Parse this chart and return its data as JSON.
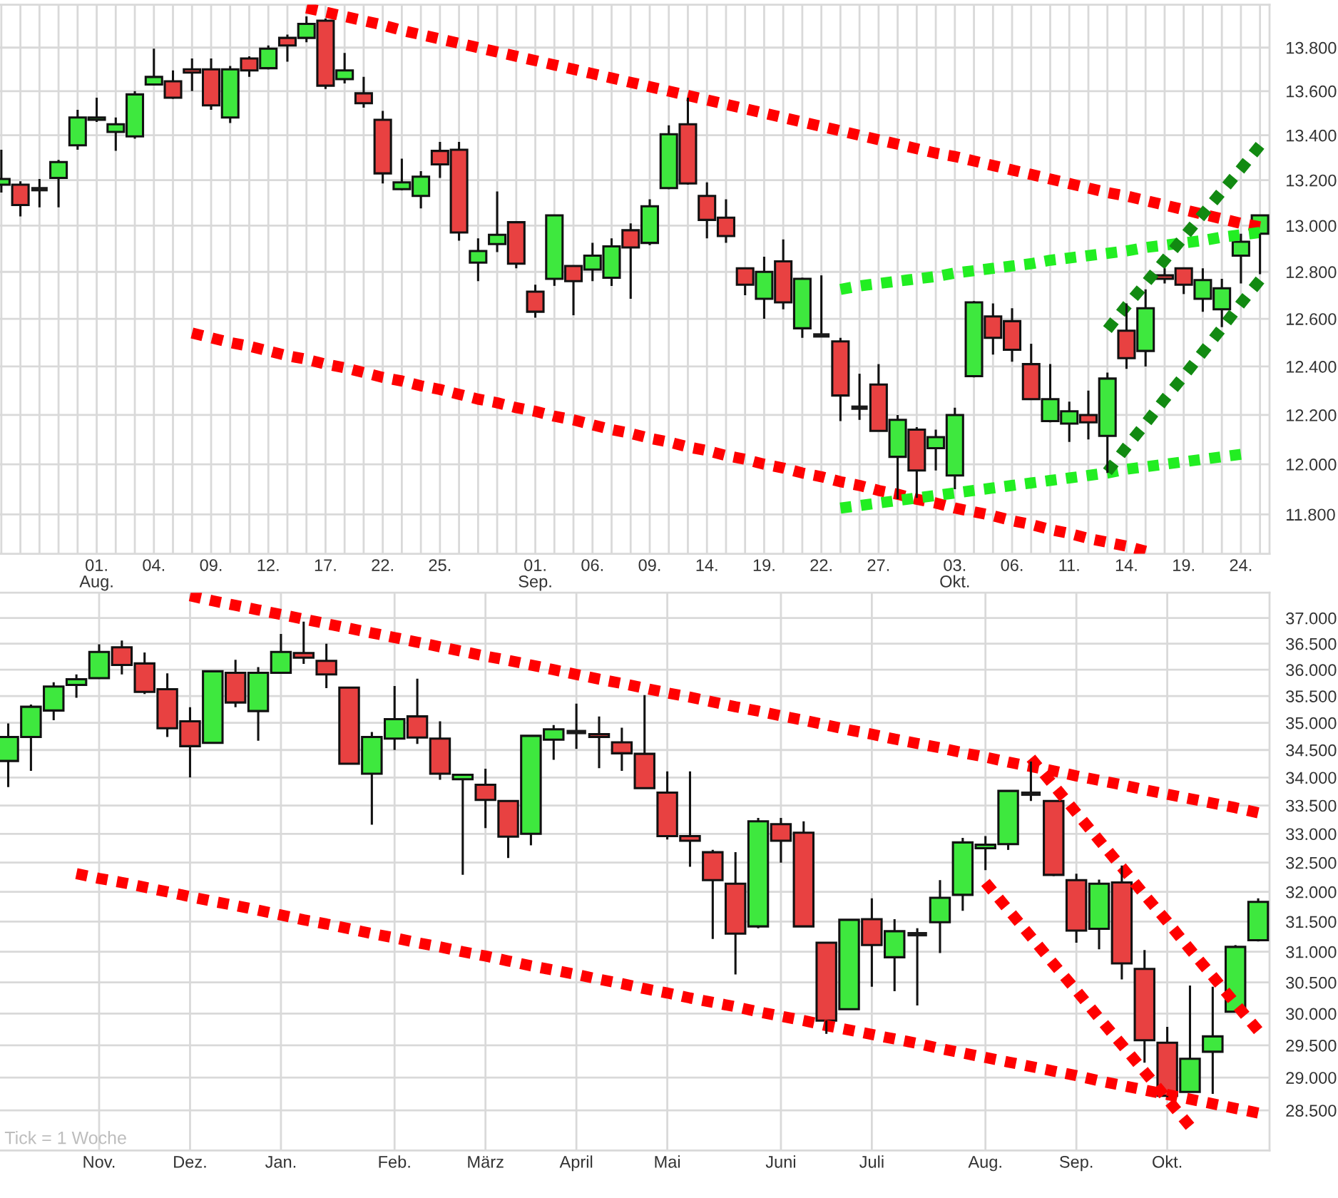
{
  "chart_data": [
    {
      "type": "candlestick",
      "categories": [
        null,
        null,
        null,
        null,
        null,
        "01.\nAug.",
        null,
        null,
        "04.",
        null,
        null,
        "09.",
        null,
        null,
        "12.",
        null,
        null,
        "17.",
        null,
        null,
        "22.",
        null,
        null,
        "25.",
        null,
        null,
        null,
        null,
        "01.\nSep.",
        null,
        null,
        "06.",
        null,
        null,
        "09.",
        null,
        null,
        "14.",
        null,
        null,
        "19.",
        null,
        null,
        "22.",
        null,
        null,
        "27.",
        null,
        null,
        null,
        "03.\nOkt.",
        null,
        null,
        "06.",
        null,
        null,
        "11.",
        null,
        null,
        "14.",
        null,
        null,
        "19.",
        null,
        null,
        "24.",
        null
      ],
      "ohlc": [
        [
          13180,
          13335,
          13145,
          13205
        ],
        [
          13180,
          13195,
          13040,
          13090
        ],
        [
          13160,
          13205,
          13080,
          13160
        ],
        [
          13210,
          13290,
          13080,
          13280
        ],
        [
          13355,
          13515,
          13335,
          13480
        ],
        [
          13470,
          13570,
          13460,
          13480
        ],
        [
          13415,
          13480,
          13330,
          13450
        ],
        [
          13395,
          13600,
          13385,
          13585
        ],
        [
          13630,
          13795,
          13625,
          13665
        ],
        [
          13645,
          13695,
          13565,
          13570
        ],
        [
          13700,
          13750,
          13600,
          13685
        ],
        [
          13700,
          13750,
          13515,
          13535
        ],
        [
          13480,
          13715,
          13455,
          13700
        ],
        [
          13750,
          13760,
          13665,
          13695
        ],
        [
          13705,
          13810,
          13700,
          13795
        ],
        [
          13845,
          13860,
          13735,
          13810
        ],
        [
          13845,
          13945,
          13825,
          13910
        ],
        [
          13925,
          13935,
          13610,
          13625
        ],
        [
          13655,
          13775,
          13635,
          13695
        ],
        [
          13590,
          13665,
          13525,
          13545
        ],
        [
          13470,
          13510,
          13185,
          13230
        ],
        [
          13160,
          13295,
          13155,
          13190
        ],
        [
          13130,
          13240,
          13075,
          13215
        ],
        [
          13330,
          13370,
          13210,
          13270
        ],
        [
          13335,
          13370,
          12935,
          12970
        ],
        [
          12840,
          12945,
          12760,
          12890
        ],
        [
          12920,
          13150,
          12885,
          12960
        ],
        [
          13015,
          13020,
          12815,
          12835
        ],
        [
          12715,
          12745,
          12605,
          12630
        ],
        [
          12770,
          13045,
          12740,
          13045
        ],
        [
          12825,
          12825,
          12615,
          12760
        ],
        [
          12810,
          12925,
          12760,
          12870
        ],
        [
          12775,
          12945,
          12740,
          12910
        ],
        [
          12980,
          13010,
          12685,
          12905
        ],
        [
          12925,
          13115,
          12915,
          13085
        ],
        [
          13165,
          13445,
          13160,
          13405
        ],
        [
          13450,
          13570,
          13180,
          13185
        ],
        [
          13130,
          13190,
          12945,
          13025
        ],
        [
          13035,
          13115,
          12925,
          12955
        ],
        [
          12815,
          12815,
          12700,
          12745
        ],
        [
          12685,
          12865,
          12600,
          12800
        ],
        [
          12845,
          12940,
          12640,
          12670
        ],
        [
          12560,
          12775,
          12520,
          12770
        ],
        [
          12530,
          12785,
          12525,
          12530
        ],
        [
          12505,
          12520,
          12175,
          12280
        ],
        [
          12230,
          12370,
          12180,
          12230
        ],
        [
          12325,
          12410,
          12135,
          12135
        ],
        [
          12030,
          12200,
          11860,
          12180
        ],
        [
          12140,
          12150,
          11865,
          11975
        ],
        [
          12065,
          12140,
          11975,
          12110
        ],
        [
          11955,
          12230,
          11900,
          12200
        ],
        [
          12360,
          12675,
          12355,
          12670
        ],
        [
          12610,
          12665,
          12450,
          12520
        ],
        [
          12590,
          12645,
          12420,
          12470
        ],
        [
          12410,
          12495,
          12265,
          12265
        ],
        [
          12175,
          12410,
          12170,
          12265
        ],
        [
          12165,
          12255,
          12090,
          12215
        ],
        [
          12200,
          12300,
          12100,
          12170
        ],
        [
          12115,
          12375,
          11965,
          12350
        ],
        [
          12550,
          12665,
          12390,
          12435
        ],
        [
          12465,
          12725,
          12400,
          12645
        ],
        [
          12785,
          12815,
          12750,
          12770
        ],
        [
          12815,
          12815,
          12705,
          12745
        ],
        [
          12685,
          12815,
          12630,
          12765
        ],
        [
          12640,
          12770,
          12565,
          12730
        ],
        [
          12870,
          12965,
          12750,
          12930
        ],
        [
          12965,
          13045,
          12790,
          13045
        ]
      ],
      "colors": [
        "#3ee83e",
        "#e84141",
        "#1a1a1a",
        "#3ee83e",
        "#3ee83e",
        "#3ee83e",
        "#3ee83e",
        "#3ee83e",
        "#3ee83e",
        "#e84141",
        "#e84141",
        "#e84141",
        "#3ee83e",
        "#e84141",
        "#3ee83e",
        "#e84141",
        "#3ee83e",
        "#e84141",
        "#3ee83e",
        "#e84141",
        "#e84141",
        "#3ee83e",
        "#3ee83e",
        "#e84141",
        "#e84141",
        "#3ee83e",
        "#3ee83e",
        "#e84141",
        "#e84141",
        "#3ee83e",
        "#e84141",
        "#3ee83e",
        "#3ee83e",
        "#e84141",
        "#3ee83e",
        "#3ee83e",
        "#e84141",
        "#e84141",
        "#e84141",
        "#e84141",
        "#3ee83e",
        "#e84141",
        "#3ee83e",
        "#1a1a1a",
        "#e84141",
        "#1a1a1a",
        "#e84141",
        "#3ee83e",
        "#e84141",
        "#3ee83e",
        "#3ee83e",
        "#3ee83e",
        "#e84141",
        "#e84141",
        "#e84141",
        "#3ee83e",
        "#3ee83e",
        "#e84141",
        "#3ee83e",
        "#e84141",
        "#3ee83e",
        "#e84141",
        "#e84141",
        "#3ee83e",
        "#3ee83e",
        "#3ee83e",
        "#3ee83e"
      ],
      "ylim": [
        11645,
        14000
      ],
      "yticks": [
        {
          "value": 11800,
          "label": "11.800"
        },
        {
          "value": 12000,
          "label": "12.000"
        },
        {
          "value": 12200,
          "label": "12.200"
        },
        {
          "value": 12400,
          "label": "12.400"
        },
        {
          "value": 12600,
          "label": "12.600"
        },
        {
          "value": 12800,
          "label": "12.800"
        },
        {
          "value": 13000,
          "label": "13.000"
        },
        {
          "value": 13200,
          "label": "13.200"
        },
        {
          "value": 13400,
          "label": "13.400"
        },
        {
          "value": 13600,
          "label": "13.600"
        },
        {
          "value": 13800,
          "label": "13.800"
        }
      ],
      "log": true,
      "grid": true,
      "series": [
        {
          "type": "line",
          "color": "#ff0000",
          "line_style": "dotted",
          "values": [
            null,
            null,
            null,
            null,
            null,
            null,
            null,
            null,
            null,
            null,
            null,
            null,
            null,
            null,
            null,
            null,
            13985,
            13965,
            13945,
            13925,
            13905,
            13880,
            13860,
            13840,
            13820,
            13800,
            13780,
            13760,
            13740,
            13720,
            13700,
            13680,
            13660,
            13640,
            13620,
            13600,
            13580,
            13560,
            13540,
            13520,
            13500,
            13480,
            13460,
            13440,
            13420,
            13400,
            13380,
            13360,
            13340,
            13320,
            13305,
            13285,
            13265,
            13245,
            13225,
            13205,
            13185,
            13165,
            13145,
            13130,
            13110,
            13090,
            13070,
            13050,
            13030,
            13010,
            12995
          ]
        },
        {
          "type": "line",
          "color": "#ff0000",
          "line_style": "dotted",
          "values": [
            null,
            null,
            null,
            null,
            null,
            null,
            null,
            null,
            null,
            null,
            12540,
            12520,
            12500,
            12485,
            12465,
            12445,
            12430,
            12410,
            12395,
            12375,
            12355,
            12340,
            12320,
            12305,
            12285,
            12265,
            12250,
            12230,
            12215,
            12195,
            12180,
            12160,
            12140,
            12125,
            12105,
            12090,
            12070,
            12055,
            12035,
            12020,
            12000,
            11985,
            11965,
            11950,
            11930,
            11915,
            11895,
            11880,
            11860,
            11845,
            11825,
            11810,
            11795,
            11775,
            11760,
            11740,
            11725,
            11705,
            11690,
            11675,
            11655,
            null,
            null,
            null,
            null,
            null,
            null
          ]
        },
        {
          "type": "line",
          "color": "#22ee22",
          "line_style": "dotted",
          "values": [
            null,
            null,
            null,
            null,
            null,
            null,
            null,
            null,
            null,
            null,
            null,
            null,
            null,
            null,
            null,
            null,
            null,
            null,
            null,
            null,
            null,
            null,
            null,
            null,
            null,
            null,
            null,
            null,
            null,
            null,
            null,
            null,
            null,
            null,
            null,
            null,
            null,
            null,
            null,
            null,
            null,
            null,
            null,
            null,
            12725,
            12740,
            12750,
            12760,
            12770,
            12780,
            12795,
            12805,
            12815,
            12825,
            12835,
            12850,
            12860,
            12870,
            12880,
            12890,
            12905,
            12915,
            12925,
            12935,
            12950,
            12960,
            12970
          ]
        },
        {
          "type": "line",
          "color": "#22ee22",
          "line_style": "dotted",
          "values": [
            null,
            null,
            null,
            null,
            null,
            null,
            null,
            null,
            null,
            null,
            null,
            null,
            null,
            null,
            null,
            null,
            null,
            null,
            null,
            null,
            null,
            null,
            null,
            null,
            null,
            null,
            null,
            null,
            null,
            null,
            null,
            null,
            null,
            null,
            null,
            null,
            null,
            null,
            null,
            null,
            null,
            null,
            null,
            null,
            11825,
            11835,
            11845,
            11855,
            11865,
            11875,
            11885,
            11895,
            11905,
            11915,
            11925,
            11935,
            11945,
            11955,
            11965,
            11980,
            11990,
            12000,
            12010,
            12020,
            12030,
            12040,
            null
          ]
        },
        {
          "type": "line",
          "color": "#128a12",
          "line_style": "dotted",
          "values": [
            null,
            null,
            null,
            null,
            null,
            null,
            null,
            null,
            null,
            null,
            null,
            null,
            null,
            null,
            null,
            null,
            null,
            null,
            null,
            null,
            null,
            null,
            null,
            null,
            null,
            null,
            null,
            null,
            null,
            null,
            null,
            null,
            null,
            null,
            null,
            null,
            null,
            null,
            null,
            null,
            null,
            null,
            null,
            null,
            null,
            null,
            null,
            null,
            null,
            null,
            null,
            null,
            null,
            null,
            null,
            null,
            null,
            null,
            12555,
            12655,
            12750,
            12850,
            12950,
            13050,
            13150,
            13250,
            13355
          ]
        },
        {
          "type": "line",
          "color": "#128a12",
          "line_style": "dotted",
          "values": [
            null,
            null,
            null,
            null,
            null,
            null,
            null,
            null,
            null,
            null,
            null,
            null,
            null,
            null,
            null,
            null,
            null,
            null,
            null,
            null,
            null,
            null,
            null,
            null,
            null,
            null,
            null,
            null,
            null,
            null,
            null,
            null,
            null,
            null,
            null,
            null,
            null,
            null,
            null,
            null,
            null,
            null,
            null,
            null,
            null,
            null,
            null,
            null,
            null,
            null,
            null,
            null,
            null,
            null,
            null,
            null,
            null,
            null,
            11970,
            12070,
            12165,
            12265,
            12360,
            12460,
            12560,
            12665,
            12765
          ]
        }
      ]
    },
    {
      "type": "candlestick",
      "categories": [
        null,
        null,
        null,
        null,
        "Nov.",
        null,
        null,
        null,
        "Dez.",
        null,
        null,
        null,
        "Jan.",
        null,
        null,
        null,
        null,
        "Feb.",
        null,
        null,
        null,
        "März",
        null,
        null,
        null,
        "April",
        null,
        null,
        null,
        "Mai",
        null,
        null,
        null,
        null,
        "Juni",
        null,
        null,
        null,
        "Juli",
        null,
        null,
        null,
        null,
        "Aug.",
        null,
        null,
        null,
        "Sep.",
        null,
        null,
        null,
        "Okt.",
        null,
        null,
        null,
        null
      ],
      "ohlc": [
        [
          34300,
          34990,
          33830,
          34740
        ],
        [
          34740,
          35340,
          34120,
          35300
        ],
        [
          35230,
          35760,
          35050,
          35680
        ],
        [
          35710,
          35910,
          35470,
          35820
        ],
        [
          35840,
          36490,
          35830,
          36340
        ],
        [
          36430,
          36560,
          35910,
          36090
        ],
        [
          36120,
          36330,
          35540,
          35580
        ],
        [
          35630,
          35930,
          34740,
          34900
        ],
        [
          35030,
          35290,
          34000,
          34570
        ],
        [
          34630,
          35970,
          34630,
          35970
        ],
        [
          35940,
          36190,
          35290,
          35380
        ],
        [
          35220,
          36050,
          34670,
          35940
        ],
        [
          35940,
          36690,
          35930,
          36340
        ],
        [
          36320,
          36930,
          36110,
          36230
        ],
        [
          36170,
          36500,
          35650,
          35910
        ],
        [
          35660,
          35660,
          34250,
          34250
        ],
        [
          34070,
          34830,
          33160,
          34740
        ],
        [
          34710,
          35690,
          34500,
          35070
        ],
        [
          35120,
          35830,
          34610,
          34730
        ],
        [
          34710,
          35030,
          33960,
          34070
        ],
        [
          33970,
          34070,
          32290,
          34050
        ],
        [
          33870,
          34160,
          33100,
          33600
        ],
        [
          33580,
          33580,
          32580,
          32950
        ],
        [
          33000,
          34760,
          32800,
          34760
        ],
        [
          34690,
          34960,
          34320,
          34880
        ],
        [
          34830,
          35360,
          34520,
          34830
        ],
        [
          34790,
          35120,
          34170,
          34740
        ],
        [
          34640,
          34910,
          34120,
          34440
        ],
        [
          34430,
          35520,
          33810,
          33810
        ],
        [
          33730,
          34110,
          32900,
          32960
        ],
        [
          32960,
          34110,
          32430,
          32880
        ],
        [
          32680,
          32720,
          31210,
          32200
        ],
        [
          32140,
          32680,
          30630,
          31300
        ],
        [
          31420,
          33280,
          31390,
          33220
        ],
        [
          33170,
          33280,
          32500,
          32880
        ],
        [
          33020,
          33220,
          31420,
          31420
        ],
        [
          31150,
          31150,
          29680,
          29890
        ],
        [
          30070,
          31530,
          30070,
          31530
        ],
        [
          31540,
          31890,
          30430,
          31110
        ],
        [
          30910,
          31540,
          30360,
          31340
        ],
        [
          31290,
          31390,
          30130,
          31290
        ],
        [
          31490,
          32200,
          30980,
          31900
        ],
        [
          31950,
          32930,
          31680,
          32850
        ],
        [
          32750,
          32960,
          32370,
          32810
        ],
        [
          32820,
          33760,
          32720,
          33760
        ],
        [
          33710,
          34290,
          33580,
          33710
        ],
        [
          33580,
          33580,
          32270,
          32290
        ],
        [
          32200,
          32310,
          31150,
          31350
        ],
        [
          31380,
          32210,
          31040,
          32140
        ],
        [
          32160,
          32450,
          30550,
          30810
        ],
        [
          30720,
          31030,
          29230,
          29580
        ],
        [
          29540,
          29790,
          28700,
          28720
        ],
        [
          28780,
          30450,
          28780,
          29290
        ],
        [
          29400,
          30430,
          28750,
          29640
        ],
        [
          30030,
          31110,
          30030,
          31080
        ],
        [
          31190,
          31890,
          31170,
          31830
        ]
      ],
      "colors": [
        "#3ee83e",
        "#3ee83e",
        "#3ee83e",
        "#3ee83e",
        "#3ee83e",
        "#e84141",
        "#e84141",
        "#e84141",
        "#e84141",
        "#3ee83e",
        "#e84141",
        "#3ee83e",
        "#3ee83e",
        "#e84141",
        "#e84141",
        "#e84141",
        "#3ee83e",
        "#3ee83e",
        "#e84141",
        "#e84141",
        "#3ee83e",
        "#e84141",
        "#e84141",
        "#3ee83e",
        "#3ee83e",
        "#1a1a1a",
        "#e84141",
        "#e84141",
        "#e84141",
        "#e84141",
        "#e84141",
        "#e84141",
        "#e84141",
        "#3ee83e",
        "#e84141",
        "#e84141",
        "#e84141",
        "#3ee83e",
        "#e84141",
        "#3ee83e",
        "#1a1a1a",
        "#3ee83e",
        "#3ee83e",
        "#3ee83e",
        "#3ee83e",
        "#1a1a1a",
        "#e84141",
        "#e84141",
        "#3ee83e",
        "#e84141",
        "#e84141",
        "#e84141",
        "#3ee83e",
        "#3ee83e",
        "#3ee83e",
        "#3ee83e"
      ],
      "ylim": [
        27900,
        37500
      ],
      "yticks": [
        {
          "value": 28500,
          "label": "28.500"
        },
        {
          "value": 29000,
          "label": "29.000"
        },
        {
          "value": 29500,
          "label": "29.500"
        },
        {
          "value": 30000,
          "label": "30.000"
        },
        {
          "value": 30500,
          "label": "30.500"
        },
        {
          "value": 31000,
          "label": "31.000"
        },
        {
          "value": 31500,
          "label": "31.500"
        },
        {
          "value": 32000,
          "label": "32.000"
        },
        {
          "value": 32500,
          "label": "32.500"
        },
        {
          "value": 33000,
          "label": "33.000"
        },
        {
          "value": 33500,
          "label": "33.500"
        },
        {
          "value": 34000,
          "label": "34.000"
        },
        {
          "value": 34500,
          "label": "34.500"
        },
        {
          "value": 35000,
          "label": "35.000"
        },
        {
          "value": 35500,
          "label": "35.500"
        },
        {
          "value": 36000,
          "label": "36.000"
        },
        {
          "value": 36500,
          "label": "36.500"
        },
        {
          "value": 37000,
          "label": "37.000"
        }
      ],
      "log": true,
      "grid": true,
      "series": [
        {
          "type": "line",
          "color": "#ff0000",
          "line_style": "dotted",
          "values": [
            null,
            null,
            null,
            null,
            null,
            null,
            null,
            null,
            37440,
            37340,
            37250,
            37160,
            37070,
            36980,
            36890,
            36800,
            36710,
            36620,
            36530,
            36440,
            36350,
            36260,
            36180,
            36090,
            36000,
            35910,
            35820,
            35740,
            35650,
            35560,
            35480,
            35390,
            35300,
            35220,
            35130,
            35050,
            34960,
            34870,
            34790,
            34700,
            34620,
            34540,
            34450,
            34370,
            34280,
            34200,
            34120,
            34030,
            33950,
            33870,
            33780,
            33700,
            33620,
            33540,
            33460,
            33370
          ]
        },
        {
          "type": "line",
          "color": "#ff0000",
          "line_style": "dotted",
          "values": [
            null,
            null,
            null,
            32310,
            32230,
            32160,
            32080,
            32000,
            31920,
            31840,
            31770,
            31690,
            31610,
            31530,
            31460,
            31380,
            31300,
            31230,
            31150,
            31080,
            31000,
            30930,
            30850,
            30770,
            30700,
            30630,
            30550,
            30480,
            30400,
            30330,
            30250,
            30180,
            30110,
            30030,
            29960,
            29890,
            29810,
            29740,
            29670,
            29600,
            29530,
            29450,
            29380,
            29310,
            29240,
            29170,
            29100,
            29030,
            28950,
            28880,
            28810,
            28740,
            28670,
            28600,
            28530,
            28460
          ]
        },
        {
          "type": "line",
          "color": "#ff0000",
          "line_style": "dotted",
          "values": [
            null,
            null,
            null,
            null,
            null,
            null,
            null,
            null,
            null,
            null,
            null,
            null,
            null,
            null,
            null,
            null,
            null,
            null,
            null,
            null,
            null,
            null,
            null,
            null,
            null,
            null,
            null,
            null,
            null,
            null,
            null,
            null,
            null,
            null,
            null,
            null,
            null,
            null,
            null,
            null,
            null,
            null,
            null,
            null,
            null,
            34350,
            33860,
            33370,
            32890,
            32420,
            31950,
            31500,
            31040,
            30600,
            30160,
            29730
          ]
        },
        {
          "type": "line",
          "color": "#ff0000",
          "line_style": "dotted",
          "values": [
            null,
            null,
            null,
            null,
            null,
            null,
            null,
            null,
            null,
            null,
            null,
            null,
            null,
            null,
            null,
            null,
            null,
            null,
            null,
            null,
            null,
            null,
            null,
            null,
            null,
            null,
            null,
            null,
            null,
            null,
            null,
            null,
            null,
            null,
            null,
            null,
            null,
            null,
            null,
            null,
            null,
            null,
            null,
            32160,
            31700,
            31250,
            30800,
            30370,
            29930,
            29510,
            29090,
            28670,
            28260,
            null,
            null,
            null
          ]
        }
      ],
      "annotations": [
        "Tick = 1 Woche"
      ]
    }
  ]
}
